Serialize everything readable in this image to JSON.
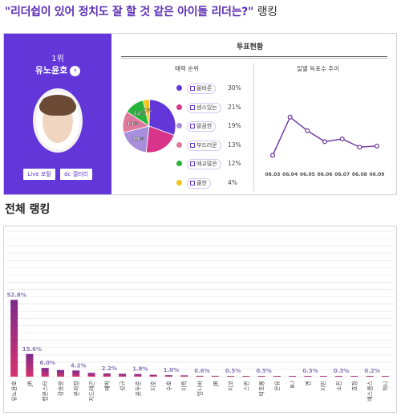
{
  "page_title": "\"리더쉽이 있어 정치도 잘 할 것 같은 아이돌 리더는?\"",
  "page_title_suffix": "랭킹",
  "winner": {
    "rank": "1위",
    "name": "유노윤호",
    "buttons": [
      "Live 포털",
      "dc 갤러리"
    ]
  },
  "vote_status_title": "투표현황",
  "colors": {
    "brand": "#6236d9",
    "bar_gradient_top": "#7a2b8c",
    "bar_gradient_mid": "#d6336c"
  },
  "chart_data": [
    {
      "type": "pie",
      "title": "매력 순위",
      "slices": [
        {
          "label": "올바른",
          "value": 30,
          "display": "30%",
          "color": "#6236d9"
        },
        {
          "label": "센스있는",
          "value": 21,
          "display": "21%",
          "color": "#d7348a"
        },
        {
          "label": "말끔한",
          "value": 19,
          "display": "19%",
          "color": "#a78fdd"
        },
        {
          "label": "부드러운",
          "value": 13,
          "display": "13%",
          "color": "#e1789e"
        },
        {
          "label": "애교많은",
          "value": 12,
          "display": "12%",
          "color": "#28b33c"
        },
        {
          "label": "쿨한",
          "value": 4,
          "display": "4%",
          "color": "#f2c318"
        }
      ],
      "pie_labels": [
        "19%",
        "13%",
        "12%",
        "4%"
      ]
    },
    {
      "type": "line",
      "title": "일별 득표수 추이",
      "x": [
        "06.03",
        "06.04",
        "06.05",
        "06.06",
        "06.07",
        "06.08",
        "06.09"
      ],
      "values": [
        2,
        9,
        6.5,
        4.5,
        5,
        3.5,
        3.7
      ],
      "ylim": [
        0,
        10
      ],
      "color": "#6a2f9c"
    },
    {
      "type": "bar",
      "title": "전체 랭킹",
      "categories": [
        "유노윤호",
        "JR",
        "랩몬스터",
        "강승윤",
        "문차장",
        "지드래곤",
        "예박",
        "성규",
        "윤두준",
        "지호",
        "수호",
        "이특",
        "엄니바",
        "JB",
        "지코",
        "스펀",
        "박초롱",
        "은유",
        "B.I",
        "엔",
        "지민",
        "소진",
        "효정",
        "에스쿱스",
        "하니"
      ],
      "values": [
        52.8,
        15.6,
        6.0,
        4.5,
        4.2,
        2.6,
        2.2,
        2.0,
        1.8,
        1.3,
        1.0,
        0.9,
        0.6,
        0.6,
        0.5,
        0.5,
        0.5,
        0.3,
        0.3,
        0.3,
        0.3,
        0.3,
        0.2,
        0.2,
        0.2
      ],
      "data_labels": [
        {
          "index": 0,
          "text": "52.8%"
        },
        {
          "index": 1,
          "text": "15.6%"
        },
        {
          "index": 2,
          "text": "6.0%"
        },
        {
          "index": 4,
          "text": "4.2%"
        },
        {
          "index": 6,
          "text": "2.2%"
        },
        {
          "index": 8,
          "text": "1.8%"
        },
        {
          "index": 10,
          "text": "1.0%"
        },
        {
          "index": 12,
          "text": "0.6%"
        },
        {
          "index": 14,
          "text": "0.5%"
        },
        {
          "index": 16,
          "text": "0.5%"
        },
        {
          "index": 19,
          "text": "0.3%"
        },
        {
          "index": 21,
          "text": "0.3%"
        },
        {
          "index": 23,
          "text": "0.2%"
        }
      ],
      "ylim": [
        0,
        100
      ],
      "grid": true
    }
  ]
}
